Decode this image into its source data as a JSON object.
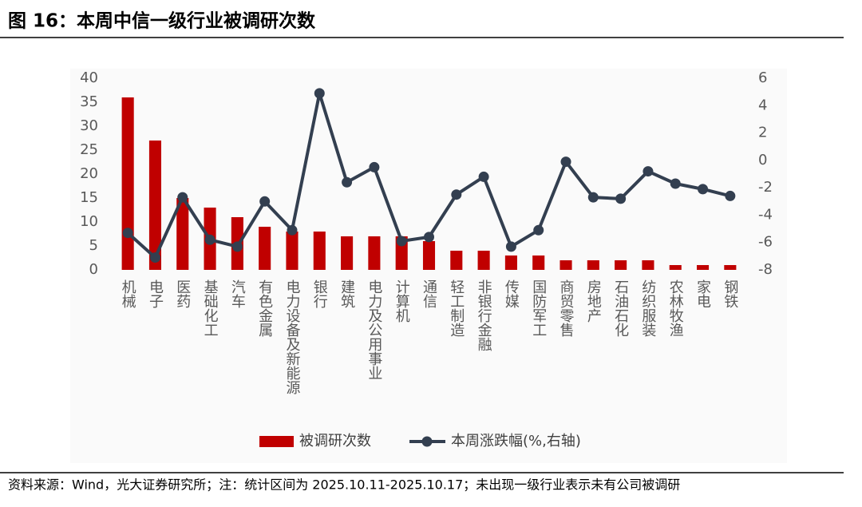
{
  "chart_data": {
    "type": "combo",
    "title": "图 16：本周中信一级行业被调研次数",
    "source": "资料来源：Wind，光大证券研究所；注：统计区间为 2025.10.11-2025.10.17；未出现一级行业表示未有公司被调研",
    "categories": [
      "机械",
      "电子",
      "医药",
      "基础化工",
      "汽车",
      "有色金属",
      "电力设备及新能源",
      "银行",
      "建筑",
      "电力及公用事业",
      "计算机",
      "通信",
      "轻工制造",
      "非银行金融",
      "传媒",
      "国防军工",
      "商贸零售",
      "房地产",
      "石油石化",
      "纺织服装",
      "农林牧渔",
      "家电",
      "钢铁"
    ],
    "series": [
      {
        "name": "被调研次数",
        "type": "bar",
        "color": "#c00000",
        "values": [
          36,
          27,
          15,
          13,
          11,
          9,
          8,
          8,
          7,
          7,
          7,
          6,
          4,
          4,
          3,
          3,
          2,
          2,
          2,
          2,
          1,
          1,
          1
        ]
      },
      {
        "name": "本周涨跌幅(%,右轴)",
        "type": "line",
        "axis": "y2",
        "color": "#333f50",
        "values": [
          -5.3,
          -7.1,
          -2.7,
          -5.8,
          -6.3,
          -3.0,
          -5.1,
          4.9,
          -1.6,
          -0.5,
          -5.9,
          -5.6,
          -2.5,
          -1.2,
          -6.3,
          -5.1,
          -0.1,
          -2.7,
          -2.8,
          -0.8,
          -1.7,
          -2.1,
          -2.6
        ]
      }
    ],
    "ylim": [
      0,
      40
    ],
    "yticks": [
      0,
      5,
      10,
      15,
      20,
      25,
      30,
      35,
      40
    ],
    "y2lim": [
      -8,
      6
    ],
    "y2ticks": [
      -8,
      -6,
      -4,
      -2,
      0,
      2,
      4,
      6
    ],
    "legend": "bottom"
  }
}
